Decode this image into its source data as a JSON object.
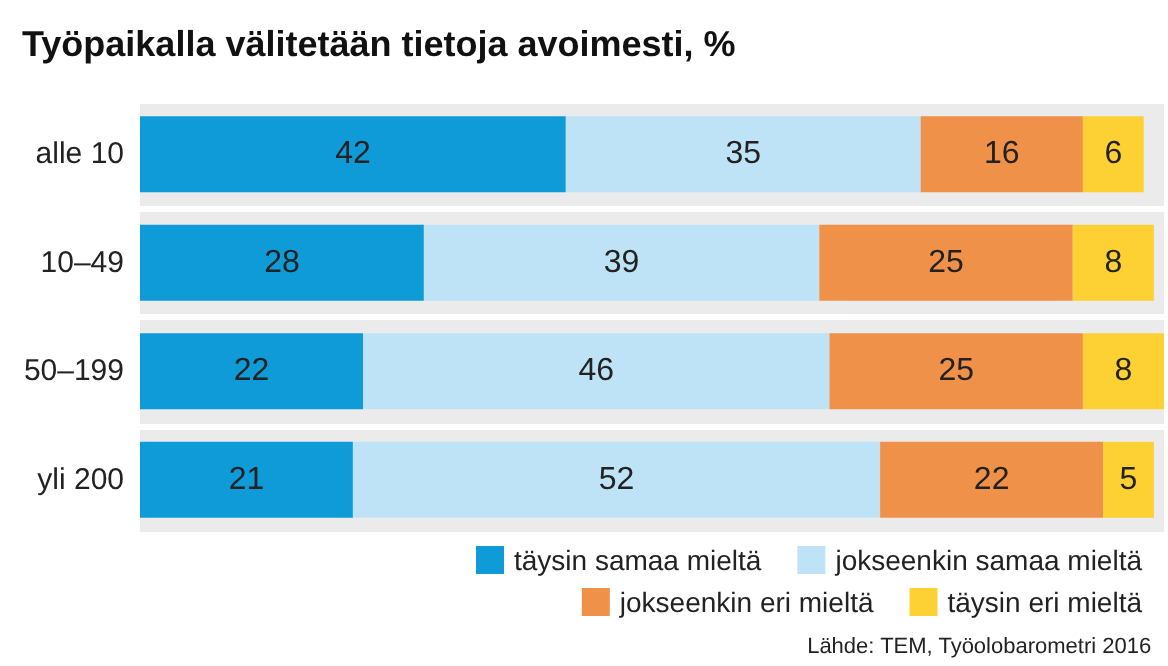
{
  "chart_data": {
    "type": "bar",
    "title": "Työpaikalla välitetään tietoja avoimesti, %",
    "orientation": "horizontal",
    "stacked": true,
    "categories": [
      "alle 10",
      "10–49",
      "50–199",
      "yli 200"
    ],
    "series": [
      {
        "name": "täysin samaa mieltä",
        "color": "#0f9bd7",
        "values": [
          42,
          28,
          22,
          21
        ]
      },
      {
        "name": "jokseenkin samaa mieltä",
        "color": "#bfe3f6",
        "values": [
          35,
          39,
          46,
          52
        ]
      },
      {
        "name": "jokseenkin eri mieltä",
        "color": "#f0914a",
        "values": [
          16,
          25,
          25,
          22
        ]
      },
      {
        "name": "täysin eri mieltä",
        "color": "#fdd133",
        "values": [
          6,
          8,
          8,
          5
        ]
      }
    ],
    "xlim": [
      0,
      101
    ],
    "data_labels": true,
    "legend": "bottom right",
    "tick_labels": "y",
    "annotations": [
      "Lähde: TEM, Työolobarometri 2016"
    ]
  }
}
